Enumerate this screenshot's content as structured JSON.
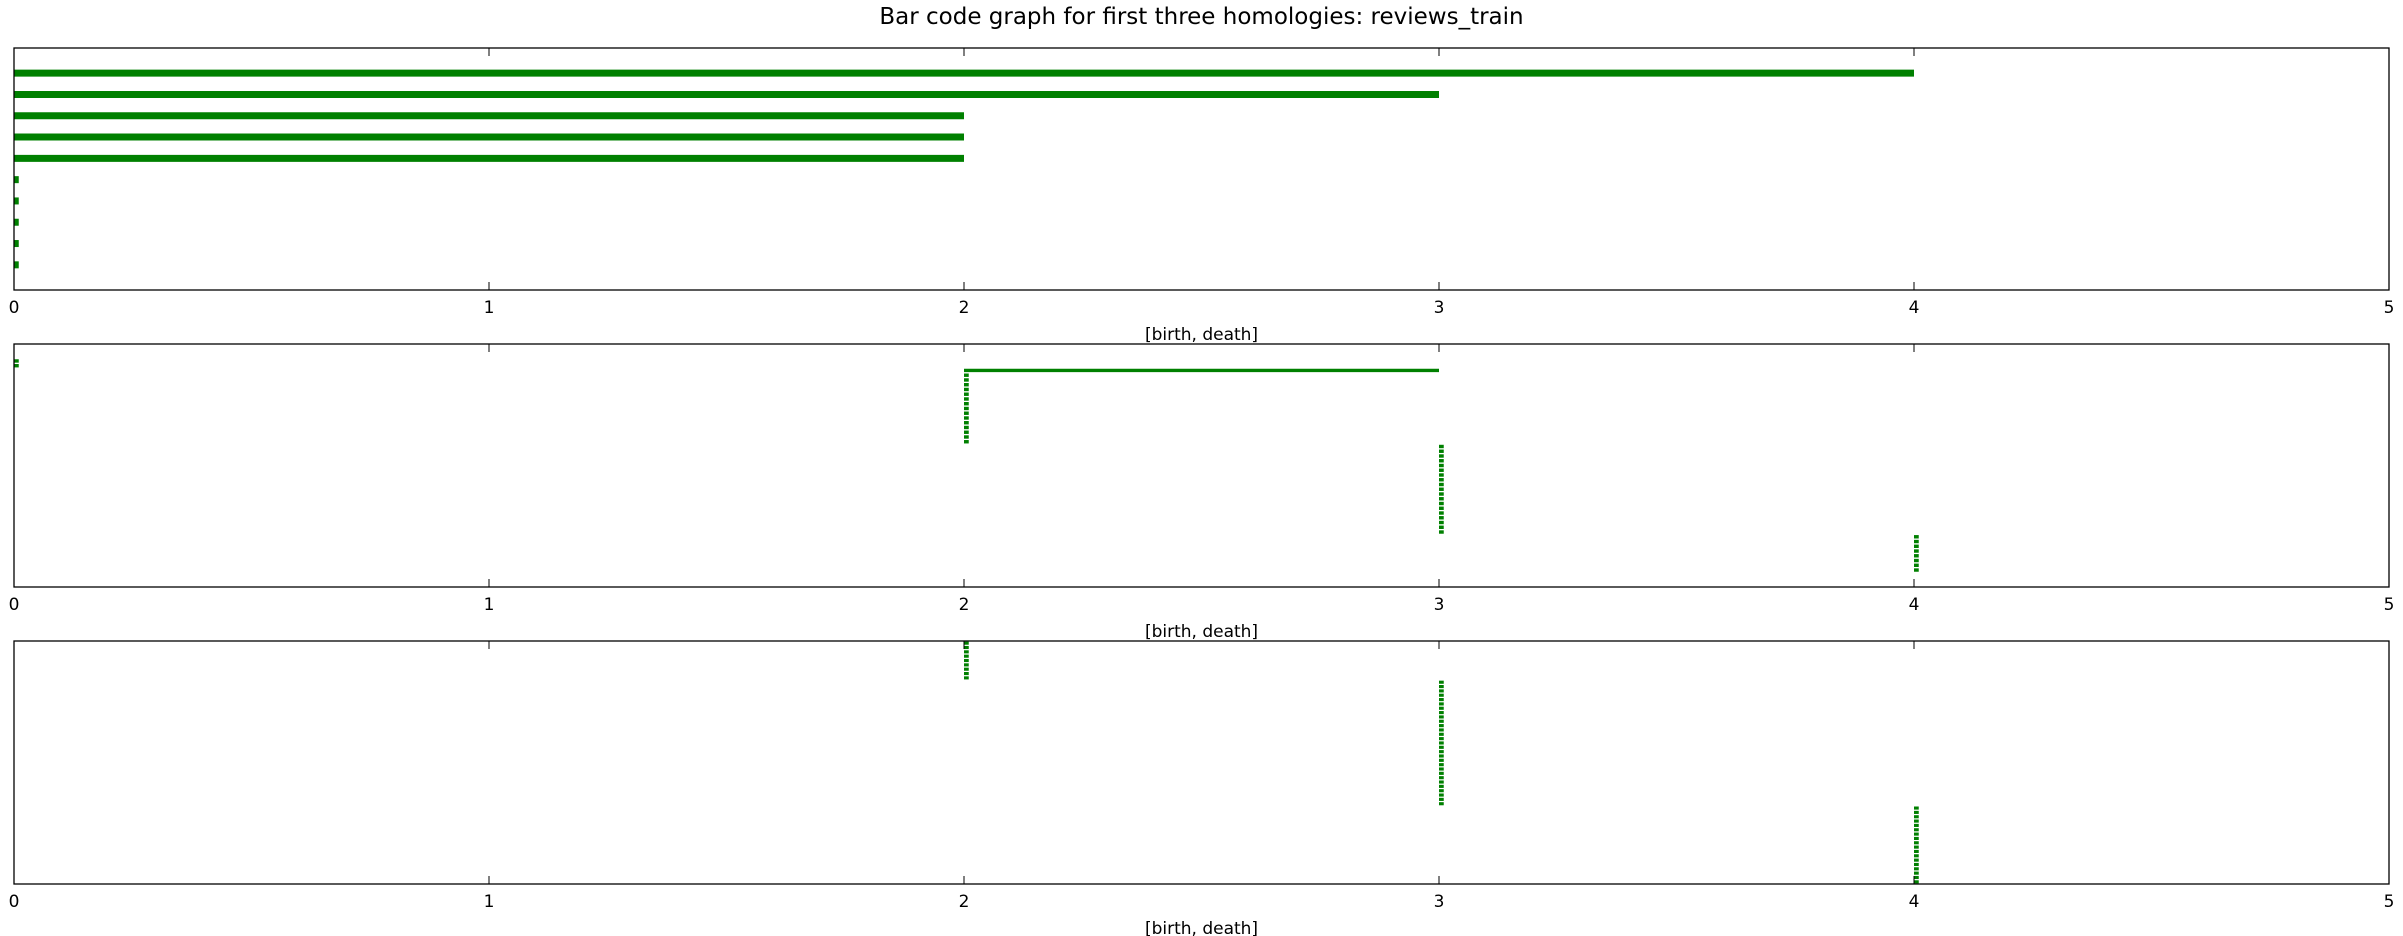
{
  "chart_data": {
    "title": "Bar code graph for first three homologies: reviews_train",
    "bar_color": "#008000",
    "panels": [
      {
        "type": "barcode",
        "xlabel": "[birth, death]",
        "xlim": [
          0,
          5
        ],
        "xticks": [
          0,
          1,
          2,
          3,
          4,
          5
        ],
        "bars": [
          [
            0,
            4
          ],
          [
            0,
            3
          ],
          [
            0,
            2
          ],
          [
            0,
            2
          ],
          [
            0,
            2
          ],
          [
            0,
            0.01
          ],
          [
            0,
            0.01
          ],
          [
            0,
            0.01
          ],
          [
            0,
            0.01
          ],
          [
            0,
            0.01
          ]
        ]
      },
      {
        "type": "barcode",
        "xlabel": "[birth, death]",
        "xlim": [
          0,
          5
        ],
        "xticks": [
          0,
          1,
          2,
          3,
          4,
          5
        ],
        "bars": [
          [
            0,
            0.01
          ],
          [
            0,
            0.01
          ],
          [
            2,
            3
          ],
          [
            2,
            2.01
          ],
          [
            2,
            2.01
          ],
          [
            2,
            2.01
          ],
          [
            2,
            2.01
          ],
          [
            2,
            2.01
          ],
          [
            2,
            2.01
          ],
          [
            2,
            2.01
          ],
          [
            2,
            2.01
          ],
          [
            2,
            2.01
          ],
          [
            2,
            2.01
          ],
          [
            2,
            2.01
          ],
          [
            2,
            2.01
          ],
          [
            2,
            2.01
          ],
          [
            2,
            2.01
          ],
          [
            2,
            2.01
          ],
          [
            3,
            3.01
          ],
          [
            3,
            3.01
          ],
          [
            3,
            3.01
          ],
          [
            3,
            3.01
          ],
          [
            3,
            3.01
          ],
          [
            3,
            3.01
          ],
          [
            3,
            3.01
          ],
          [
            3,
            3.01
          ],
          [
            3,
            3.01
          ],
          [
            3,
            3.01
          ],
          [
            3,
            3.01
          ],
          [
            3,
            3.01
          ],
          [
            3,
            3.01
          ],
          [
            3,
            3.01
          ],
          [
            3,
            3.01
          ],
          [
            3,
            3.01
          ],
          [
            3,
            3.01
          ],
          [
            3,
            3.01
          ],
          [
            3,
            3.01
          ],
          [
            4,
            4.01
          ],
          [
            4,
            4.01
          ],
          [
            4,
            4.01
          ],
          [
            4,
            4.01
          ],
          [
            4,
            4.01
          ],
          [
            4,
            4.01
          ],
          [
            4,
            4.01
          ],
          [
            4,
            4.01
          ]
        ]
      },
      {
        "type": "barcode",
        "xlabel": "[birth, death]",
        "xlim": [
          0,
          5
        ],
        "xticks": [
          0,
          1,
          2,
          3,
          4,
          5
        ],
        "bar_groups": [
          {
            "birth": 2,
            "death": 2.01,
            "count": 9
          },
          {
            "birth": 3,
            "death": 3.01,
            "count": 29
          },
          {
            "birth": 4,
            "death": 4.01,
            "count": 18
          }
        ]
      }
    ]
  }
}
